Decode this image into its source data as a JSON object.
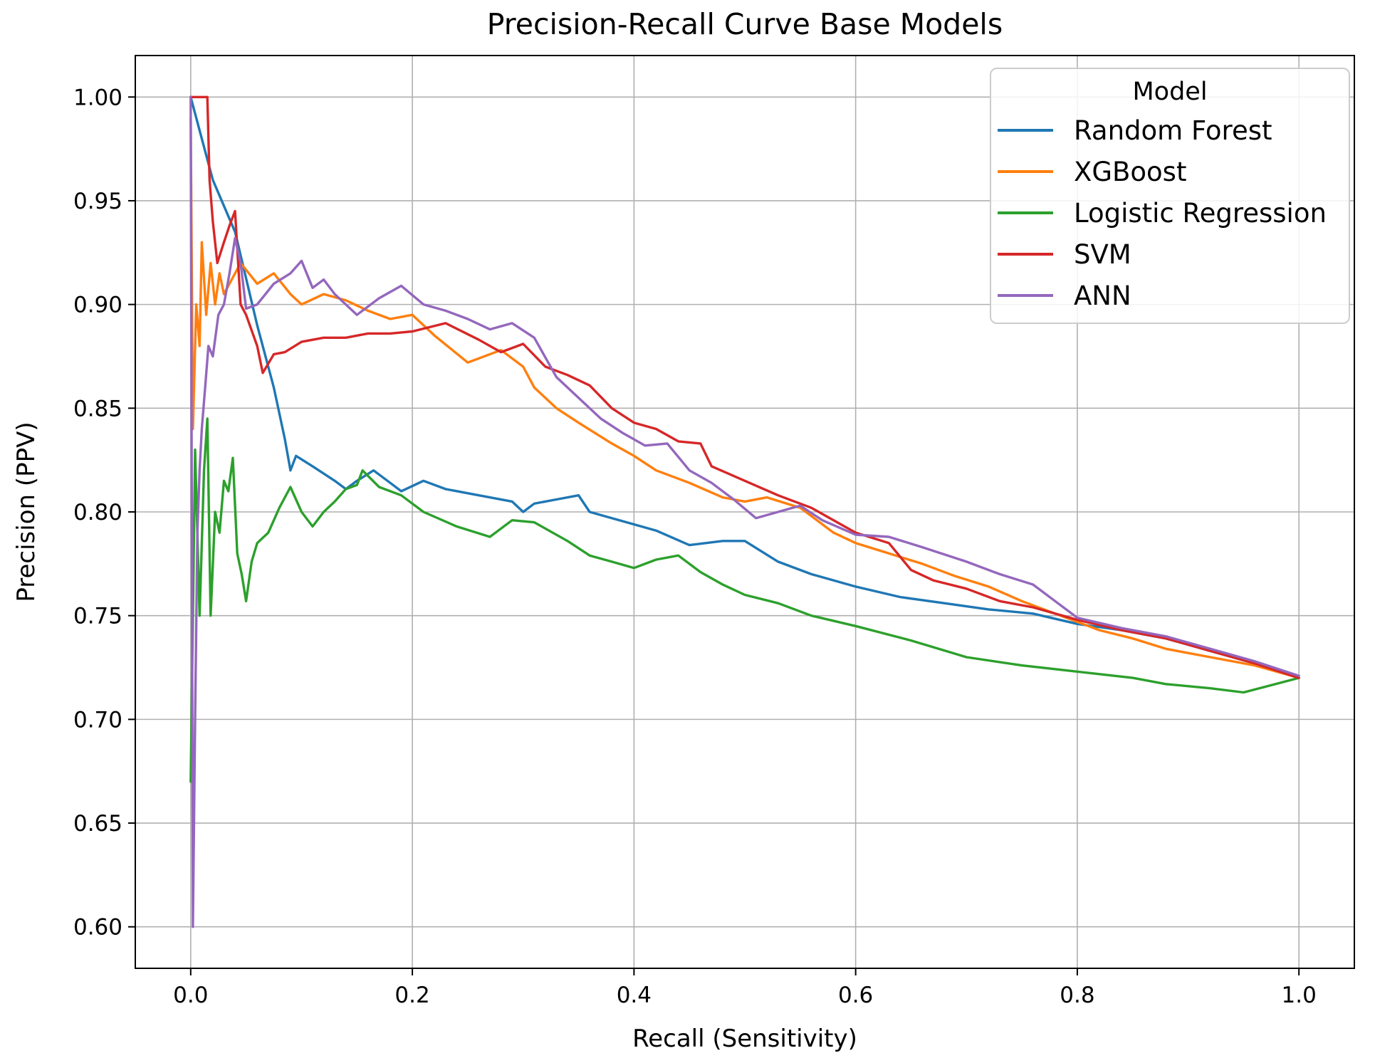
{
  "chart_data": {
    "type": "line",
    "title": "Precision-Recall Curve Base Models",
    "xlabel": "Recall (Sensitivity)",
    "ylabel": "Precision (PPV)",
    "xlim": [
      -0.05,
      1.05
    ],
    "ylim": [
      0.58,
      1.02
    ],
    "xticks": [
      0.0,
      0.2,
      0.4,
      0.6,
      0.8,
      1.0
    ],
    "xtick_labels": [
      "0.0",
      "0.2",
      "0.4",
      "0.6",
      "0.8",
      "1.0"
    ],
    "yticks": [
      0.6,
      0.65,
      0.7,
      0.75,
      0.8,
      0.85,
      0.9,
      0.95,
      1.0
    ],
    "ytick_labels": [
      "0.60",
      "0.65",
      "0.70",
      "0.75",
      "0.80",
      "0.85",
      "0.90",
      "0.95",
      "1.00"
    ],
    "grid": true,
    "legend": {
      "title": "Model",
      "position": "top-right"
    },
    "series": [
      {
        "name": "Random Forest",
        "color": "#1f77b4",
        "points": [
          [
            0.0,
            1.0
          ],
          [
            0.02,
            0.96
          ],
          [
            0.04,
            0.935
          ],
          [
            0.06,
            0.89
          ],
          [
            0.075,
            0.86
          ],
          [
            0.085,
            0.835
          ],
          [
            0.09,
            0.82
          ],
          [
            0.095,
            0.827
          ],
          [
            0.11,
            0.822
          ],
          [
            0.13,
            0.815
          ],
          [
            0.14,
            0.811
          ],
          [
            0.15,
            0.815
          ],
          [
            0.165,
            0.82
          ],
          [
            0.18,
            0.814
          ],
          [
            0.19,
            0.81
          ],
          [
            0.21,
            0.815
          ],
          [
            0.23,
            0.811
          ],
          [
            0.26,
            0.808
          ],
          [
            0.29,
            0.805
          ],
          [
            0.3,
            0.8
          ],
          [
            0.31,
            0.804
          ],
          [
            0.33,
            0.806
          ],
          [
            0.35,
            0.808
          ],
          [
            0.36,
            0.8
          ],
          [
            0.38,
            0.797
          ],
          [
            0.4,
            0.794
          ],
          [
            0.42,
            0.791
          ],
          [
            0.45,
            0.784
          ],
          [
            0.48,
            0.786
          ],
          [
            0.5,
            0.786
          ],
          [
            0.53,
            0.776
          ],
          [
            0.56,
            0.77
          ],
          [
            0.6,
            0.764
          ],
          [
            0.64,
            0.759
          ],
          [
            0.68,
            0.756
          ],
          [
            0.72,
            0.753
          ],
          [
            0.76,
            0.751
          ],
          [
            0.8,
            0.746
          ],
          [
            0.84,
            0.743
          ],
          [
            0.88,
            0.739
          ],
          [
            0.92,
            0.733
          ],
          [
            0.96,
            0.727
          ],
          [
            1.0,
            0.72
          ]
        ]
      },
      {
        "name": "XGBoost",
        "color": "#ff7f0e",
        "points": [
          [
            0.0,
            0.99
          ],
          [
            0.002,
            0.84
          ],
          [
            0.005,
            0.9
          ],
          [
            0.008,
            0.88
          ],
          [
            0.01,
            0.93
          ],
          [
            0.014,
            0.895
          ],
          [
            0.018,
            0.92
          ],
          [
            0.022,
            0.9
          ],
          [
            0.026,
            0.915
          ],
          [
            0.03,
            0.905
          ],
          [
            0.035,
            0.91
          ],
          [
            0.045,
            0.92
          ],
          [
            0.06,
            0.91
          ],
          [
            0.075,
            0.915
          ],
          [
            0.09,
            0.905
          ],
          [
            0.1,
            0.9
          ],
          [
            0.12,
            0.905
          ],
          [
            0.14,
            0.902
          ],
          [
            0.16,
            0.897
          ],
          [
            0.18,
            0.893
          ],
          [
            0.2,
            0.895
          ],
          [
            0.22,
            0.885
          ],
          [
            0.25,
            0.872
          ],
          [
            0.28,
            0.878
          ],
          [
            0.3,
            0.87
          ],
          [
            0.31,
            0.86
          ],
          [
            0.33,
            0.85
          ],
          [
            0.35,
            0.843
          ],
          [
            0.38,
            0.833
          ],
          [
            0.4,
            0.827
          ],
          [
            0.42,
            0.82
          ],
          [
            0.45,
            0.814
          ],
          [
            0.48,
            0.807
          ],
          [
            0.5,
            0.805
          ],
          [
            0.52,
            0.807
          ],
          [
            0.55,
            0.802
          ],
          [
            0.58,
            0.79
          ],
          [
            0.6,
            0.785
          ],
          [
            0.63,
            0.78
          ],
          [
            0.66,
            0.775
          ],
          [
            0.69,
            0.769
          ],
          [
            0.72,
            0.764
          ],
          [
            0.75,
            0.757
          ],
          [
            0.78,
            0.751
          ],
          [
            0.8,
            0.747
          ],
          [
            0.82,
            0.743
          ],
          [
            0.85,
            0.739
          ],
          [
            0.88,
            0.734
          ],
          [
            0.92,
            0.73
          ],
          [
            0.96,
            0.726
          ],
          [
            1.0,
            0.72
          ]
        ]
      },
      {
        "name": "Logistic Regression",
        "color": "#2ca02c",
        "points": [
          [
            0.0,
            0.67
          ],
          [
            0.004,
            0.83
          ],
          [
            0.008,
            0.75
          ],
          [
            0.012,
            0.82
          ],
          [
            0.015,
            0.845
          ],
          [
            0.018,
            0.75
          ],
          [
            0.022,
            0.8
          ],
          [
            0.026,
            0.79
          ],
          [
            0.03,
            0.815
          ],
          [
            0.034,
            0.81
          ],
          [
            0.038,
            0.826
          ],
          [
            0.042,
            0.78
          ],
          [
            0.046,
            0.77
          ],
          [
            0.05,
            0.757
          ],
          [
            0.055,
            0.776
          ],
          [
            0.06,
            0.785
          ],
          [
            0.07,
            0.79
          ],
          [
            0.08,
            0.802
          ],
          [
            0.09,
            0.812
          ],
          [
            0.1,
            0.8
          ],
          [
            0.11,
            0.793
          ],
          [
            0.12,
            0.8
          ],
          [
            0.13,
            0.805
          ],
          [
            0.14,
            0.811
          ],
          [
            0.15,
            0.813
          ],
          [
            0.155,
            0.82
          ],
          [
            0.17,
            0.812
          ],
          [
            0.19,
            0.808
          ],
          [
            0.21,
            0.8
          ],
          [
            0.24,
            0.793
          ],
          [
            0.27,
            0.788
          ],
          [
            0.29,
            0.796
          ],
          [
            0.31,
            0.795
          ],
          [
            0.34,
            0.786
          ],
          [
            0.36,
            0.779
          ],
          [
            0.38,
            0.776
          ],
          [
            0.4,
            0.773
          ],
          [
            0.42,
            0.777
          ],
          [
            0.44,
            0.779
          ],
          [
            0.46,
            0.771
          ],
          [
            0.48,
            0.765
          ],
          [
            0.5,
            0.76
          ],
          [
            0.53,
            0.756
          ],
          [
            0.56,
            0.75
          ],
          [
            0.6,
            0.745
          ],
          [
            0.65,
            0.738
          ],
          [
            0.7,
            0.73
          ],
          [
            0.75,
            0.726
          ],
          [
            0.8,
            0.723
          ],
          [
            0.85,
            0.72
          ],
          [
            0.88,
            0.717
          ],
          [
            0.92,
            0.715
          ],
          [
            0.95,
            0.713
          ],
          [
            1.0,
            0.72
          ]
        ]
      },
      {
        "name": "SVM",
        "color": "#d62728",
        "points": [
          [
            0.0,
            1.0
          ],
          [
            0.015,
            1.0
          ],
          [
            0.017,
            0.96
          ],
          [
            0.02,
            0.94
          ],
          [
            0.024,
            0.92
          ],
          [
            0.03,
            0.93
          ],
          [
            0.035,
            0.938
          ],
          [
            0.04,
            0.945
          ],
          [
            0.045,
            0.9
          ],
          [
            0.05,
            0.895
          ],
          [
            0.06,
            0.88
          ],
          [
            0.065,
            0.867
          ],
          [
            0.075,
            0.876
          ],
          [
            0.085,
            0.877
          ],
          [
            0.1,
            0.882
          ],
          [
            0.12,
            0.884
          ],
          [
            0.14,
            0.884
          ],
          [
            0.16,
            0.886
          ],
          [
            0.18,
            0.886
          ],
          [
            0.2,
            0.887
          ],
          [
            0.23,
            0.891
          ],
          [
            0.26,
            0.883
          ],
          [
            0.28,
            0.877
          ],
          [
            0.3,
            0.881
          ],
          [
            0.32,
            0.87
          ],
          [
            0.34,
            0.866
          ],
          [
            0.36,
            0.861
          ],
          [
            0.38,
            0.85
          ],
          [
            0.4,
            0.843
          ],
          [
            0.42,
            0.84
          ],
          [
            0.44,
            0.834
          ],
          [
            0.46,
            0.833
          ],
          [
            0.47,
            0.822
          ],
          [
            0.5,
            0.815
          ],
          [
            0.53,
            0.808
          ],
          [
            0.56,
            0.802
          ],
          [
            0.6,
            0.79
          ],
          [
            0.63,
            0.785
          ],
          [
            0.65,
            0.772
          ],
          [
            0.67,
            0.767
          ],
          [
            0.7,
            0.763
          ],
          [
            0.73,
            0.757
          ],
          [
            0.76,
            0.754
          ],
          [
            0.8,
            0.748
          ],
          [
            0.84,
            0.743
          ],
          [
            0.88,
            0.739
          ],
          [
            0.92,
            0.733
          ],
          [
            0.96,
            0.727
          ],
          [
            1.0,
            0.72
          ]
        ]
      },
      {
        "name": "ANN",
        "color": "#9467bd",
        "points": [
          [
            0.0,
            1.0
          ],
          [
            0.002,
            0.6
          ],
          [
            0.004,
            0.7
          ],
          [
            0.006,
            0.79
          ],
          [
            0.008,
            0.82
          ],
          [
            0.01,
            0.84
          ],
          [
            0.013,
            0.86
          ],
          [
            0.016,
            0.88
          ],
          [
            0.02,
            0.875
          ],
          [
            0.025,
            0.895
          ],
          [
            0.03,
            0.9
          ],
          [
            0.035,
            0.915
          ],
          [
            0.04,
            0.932
          ],
          [
            0.045,
            0.92
          ],
          [
            0.05,
            0.898
          ],
          [
            0.06,
            0.9
          ],
          [
            0.075,
            0.91
          ],
          [
            0.09,
            0.915
          ],
          [
            0.1,
            0.921
          ],
          [
            0.11,
            0.908
          ],
          [
            0.12,
            0.912
          ],
          [
            0.13,
            0.905
          ],
          [
            0.15,
            0.895
          ],
          [
            0.17,
            0.903
          ],
          [
            0.19,
            0.909
          ],
          [
            0.21,
            0.9
          ],
          [
            0.23,
            0.897
          ],
          [
            0.25,
            0.893
          ],
          [
            0.27,
            0.888
          ],
          [
            0.29,
            0.891
          ],
          [
            0.31,
            0.884
          ],
          [
            0.33,
            0.865
          ],
          [
            0.35,
            0.855
          ],
          [
            0.37,
            0.845
          ],
          [
            0.39,
            0.838
          ],
          [
            0.41,
            0.832
          ],
          [
            0.43,
            0.833
          ],
          [
            0.45,
            0.82
          ],
          [
            0.47,
            0.814
          ],
          [
            0.49,
            0.806
          ],
          [
            0.51,
            0.797
          ],
          [
            0.53,
            0.8
          ],
          [
            0.55,
            0.803
          ],
          [
            0.57,
            0.796
          ],
          [
            0.6,
            0.789
          ],
          [
            0.63,
            0.788
          ],
          [
            0.66,
            0.783
          ],
          [
            0.7,
            0.776
          ],
          [
            0.73,
            0.77
          ],
          [
            0.76,
            0.765
          ],
          [
            0.78,
            0.757
          ],
          [
            0.8,
            0.749
          ],
          [
            0.84,
            0.744
          ],
          [
            0.88,
            0.74
          ],
          [
            0.92,
            0.734
          ],
          [
            0.96,
            0.728
          ],
          [
            1.0,
            0.721
          ]
        ]
      }
    ]
  }
}
